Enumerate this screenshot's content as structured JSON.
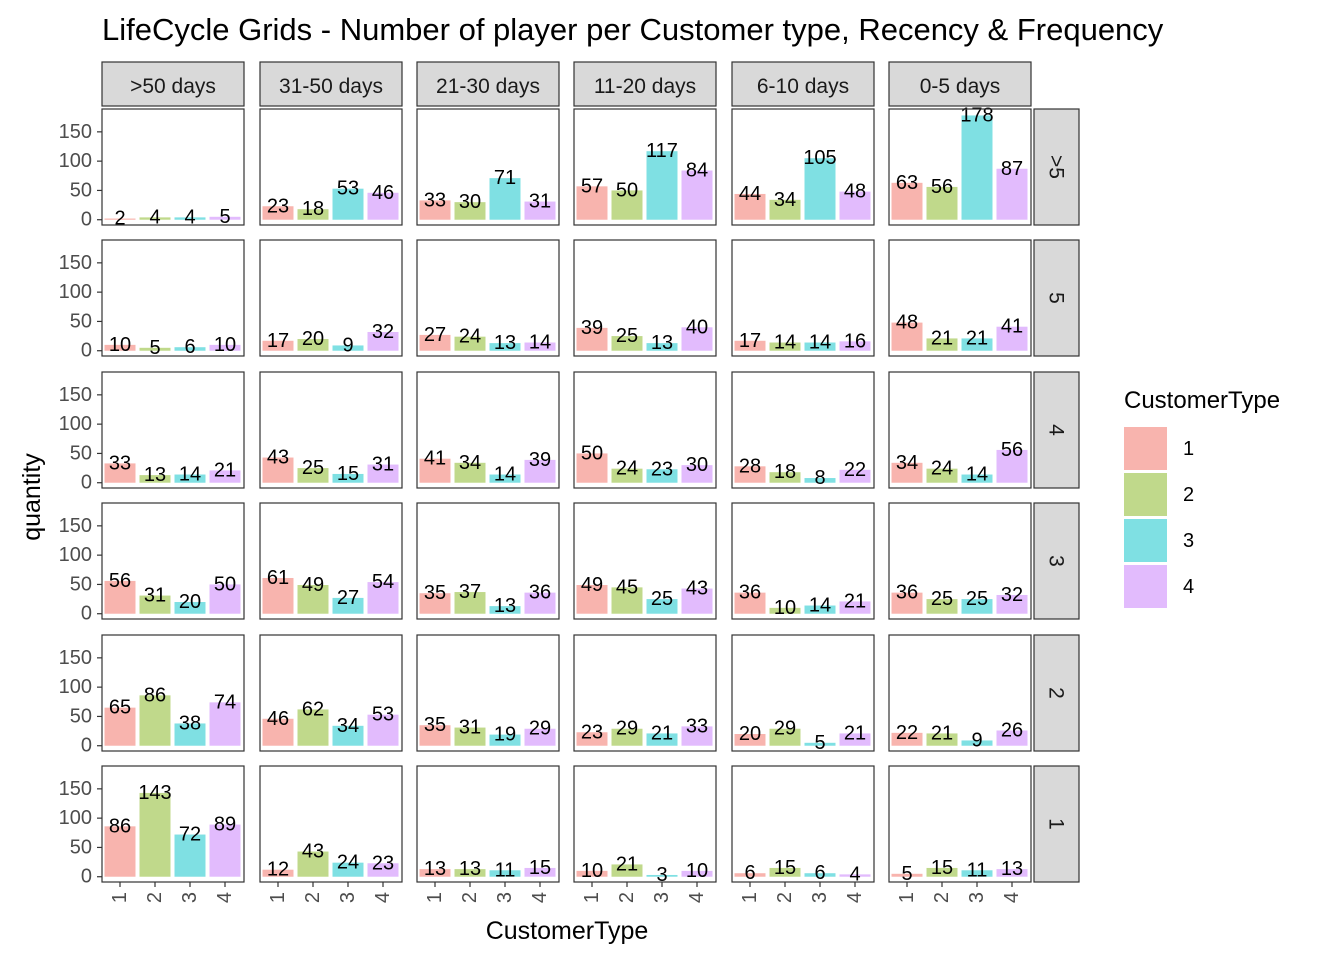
{
  "chart_data": {
    "type": "bar",
    "title": "LifeCycle Grids - Number of player per Customer type, Recency & Frequency",
    "xlabel": "CustomerType",
    "ylabel": "quantity",
    "categories": [
      "1",
      "2",
      "3",
      "4"
    ],
    "column_facets": [
      ">50 days",
      "31-50 days",
      "21-30 days",
      "11-20 days",
      "6-10 days",
      "0-5 days"
    ],
    "row_facets": [
      ">5",
      "5",
      "4",
      "3",
      "2",
      "1"
    ],
    "ylim": [
      0,
      180
    ],
    "y_ticks": [
      0,
      50,
      100,
      150
    ],
    "grid": false,
    "legend": {
      "title": "CustomerType",
      "position": "right",
      "entries": [
        {
          "label": "1",
          "color": "#F8B4AE"
        },
        {
          "label": "2",
          "color": "#C0D98B"
        },
        {
          "label": "3",
          "color": "#7FE0E3"
        },
        {
          "label": "4",
          "color": "#E2BBFD"
        }
      ]
    },
    "values": [
      [
        [
          2,
          4,
          4,
          5
        ],
        [
          23,
          18,
          53,
          46
        ],
        [
          33,
          30,
          71,
          31
        ],
        [
          57,
          50,
          117,
          84
        ],
        [
          44,
          34,
          105,
          48
        ],
        [
          63,
          56,
          178,
          87
        ]
      ],
      [
        [
          10,
          5,
          6,
          10
        ],
        [
          17,
          20,
          9,
          32
        ],
        [
          27,
          24,
          13,
          14
        ],
        [
          39,
          25,
          13,
          40
        ],
        [
          17,
          14,
          14,
          16
        ],
        [
          48,
          21,
          21,
          41
        ]
      ],
      [
        [
          33,
          13,
          14,
          21
        ],
        [
          43,
          25,
          15,
          31
        ],
        [
          41,
          34,
          14,
          39
        ],
        [
          50,
          24,
          23,
          30
        ],
        [
          28,
          18,
          8,
          22
        ],
        [
          34,
          24,
          14,
          56
        ]
      ],
      [
        [
          56,
          31,
          20,
          50
        ],
        [
          61,
          49,
          27,
          54
        ],
        [
          35,
          37,
          13,
          36
        ],
        [
          49,
          45,
          25,
          43
        ],
        [
          36,
          10,
          14,
          21
        ],
        [
          36,
          25,
          25,
          32
        ]
      ],
      [
        [
          65,
          86,
          38,
          74
        ],
        [
          46,
          62,
          34,
          53
        ],
        [
          35,
          31,
          19,
          29
        ],
        [
          23,
          29,
          21,
          33
        ],
        [
          20,
          29,
          5,
          21
        ],
        [
          22,
          21,
          9,
          26
        ]
      ],
      [
        [
          86,
          143,
          72,
          89
        ],
        [
          12,
          43,
          24,
          23
        ],
        [
          13,
          13,
          11,
          15
        ],
        [
          10,
          21,
          3,
          10
        ],
        [
          6,
          15,
          6,
          4
        ],
        [
          5,
          15,
          11,
          13
        ]
      ]
    ]
  }
}
